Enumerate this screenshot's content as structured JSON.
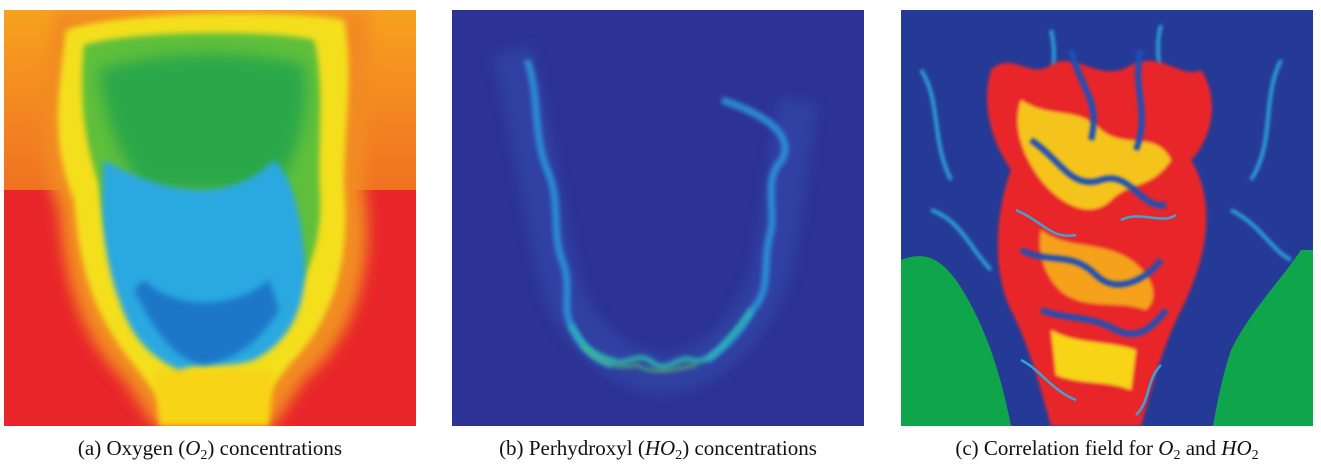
{
  "figures": [
    {
      "id": "a",
      "label": "(a)",
      "caption_pre": "Oxygen (",
      "species": "O",
      "species_sub": "2",
      "caption_post": ") concentrations",
      "colormap": "jet",
      "colors": {
        "background": "#e8262a",
        "accent": "#f7d418"
      }
    },
    {
      "id": "b",
      "label": "(b)",
      "caption_pre": "Perhydroxyl (",
      "species": "HO",
      "species_sub": "2",
      "caption_post": ") concentrations",
      "colormap": "jet",
      "colors": {
        "background": "#2c3394",
        "accent": "#29a8e0"
      }
    },
    {
      "id": "c",
      "label": "(c)",
      "caption_pre": "Correlation field for ",
      "species": "O",
      "species_sub": "2",
      "caption_mid": " and ",
      "species2": "HO",
      "species2_sub": "2",
      "caption_post": "",
      "colormap": "jet",
      "colors": {
        "background": "#253a96",
        "accent": "#e8262a",
        "lower": "#0fa64b"
      }
    }
  ]
}
